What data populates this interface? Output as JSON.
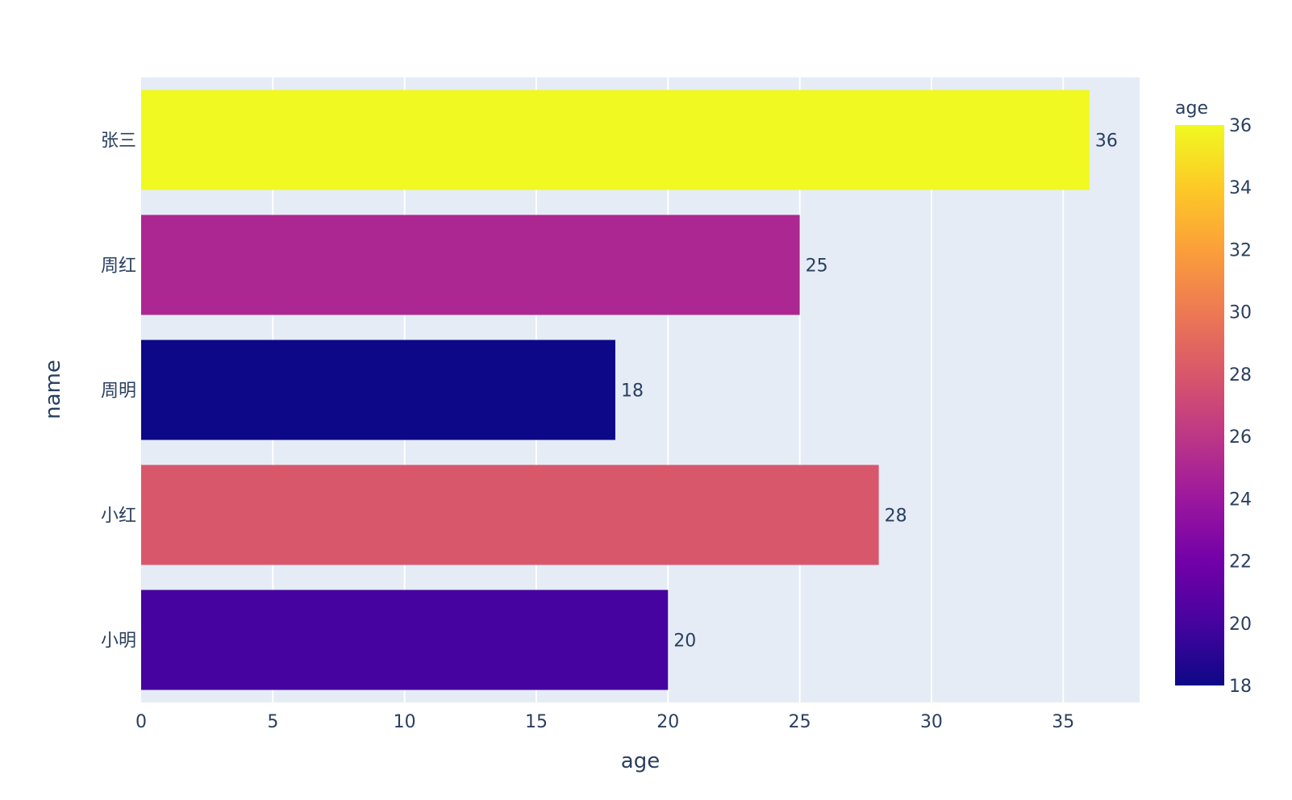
{
  "chart_data": {
    "type": "bar",
    "orientation": "horizontal",
    "categories": [
      "小明",
      "小红",
      "周明",
      "周红",
      "张三"
    ],
    "values": [
      20,
      28,
      18,
      25,
      36
    ],
    "data_labels": [
      "20",
      "28",
      "18",
      "25",
      "36"
    ],
    "title": "",
    "xlabel": "age",
    "ylabel": "name",
    "xlim": [
      0,
      37.9
    ],
    "x_ticks": [
      0,
      5,
      10,
      15,
      20,
      25,
      30,
      35
    ],
    "x_tick_labels": [
      "0",
      "5",
      "10",
      "15",
      "20",
      "25",
      "30",
      "35"
    ],
    "grid": true,
    "colorbar": {
      "title": "age",
      "range": [
        18,
        36
      ],
      "ticks": [
        18,
        20,
        22,
        24,
        26,
        28,
        30,
        32,
        34,
        36
      ],
      "tick_labels": [
        "18",
        "20",
        "22",
        "24",
        "26",
        "28",
        "30",
        "32",
        "34",
        "36"
      ],
      "placement": "right",
      "colorscale": [
        "#0d0887",
        "#46039f",
        "#7201a8",
        "#9c179e",
        "#bd3786",
        "#d8576b",
        "#ed7953",
        "#fb9f3a",
        "#fdca26",
        "#f0f921"
      ]
    },
    "plot_background": "#e5ecf6",
    "grid_color": "#ffffff",
    "text_color": "#2a3f5f"
  }
}
